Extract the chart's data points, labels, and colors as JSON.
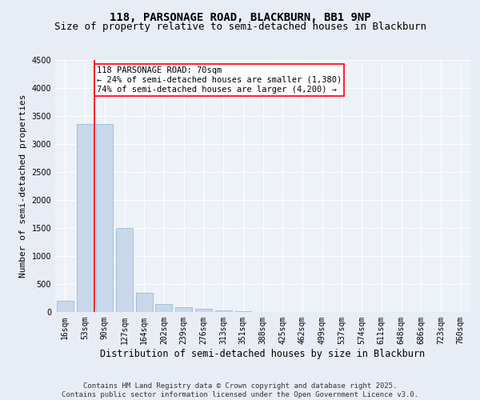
{
  "title_line1": "118, PARSONAGE ROAD, BLACKBURN, BB1 9NP",
  "title_line2": "Size of property relative to semi-detached houses in Blackburn",
  "xlabel": "Distribution of semi-detached houses by size in Blackburn",
  "ylabel": "Number of semi-detached properties",
  "categories": [
    "16sqm",
    "53sqm",
    "90sqm",
    "127sqm",
    "164sqm",
    "202sqm",
    "239sqm",
    "276sqm",
    "313sqm",
    "351sqm",
    "388sqm",
    "425sqm",
    "462sqm",
    "499sqm",
    "537sqm",
    "574sqm",
    "611sqm",
    "648sqm",
    "686sqm",
    "723sqm",
    "760sqm"
  ],
  "values": [
    200,
    3350,
    3350,
    1500,
    350,
    140,
    90,
    55,
    30,
    10,
    3,
    0,
    0,
    0,
    0,
    0,
    0,
    0,
    0,
    0,
    0
  ],
  "bar_color": "#c8d8ea",
  "bar_edge_color": "#8ab4d0",
  "vline_color": "red",
  "vline_x": 1.5,
  "annotation_text": "118 PARSONAGE ROAD: 70sqm\n← 24% of semi-detached houses are smaller (1,380)\n74% of semi-detached houses are larger (4,200) →",
  "annotation_box_color": "red",
  "ylim": [
    0,
    4500
  ],
  "yticks": [
    0,
    500,
    1000,
    1500,
    2000,
    2500,
    3000,
    3500,
    4000,
    4500
  ],
  "background_color": "#e8edf5",
  "plot_background": "#edf1f8",
  "footer_text": "Contains HM Land Registry data © Crown copyright and database right 2025.\nContains public sector information licensed under the Open Government Licence v3.0.",
  "title_fontsize": 10,
  "subtitle_fontsize": 9,
  "xlabel_fontsize": 8.5,
  "ylabel_fontsize": 8,
  "tick_fontsize": 7,
  "annotation_fontsize": 7.5,
  "footer_fontsize": 6.5
}
